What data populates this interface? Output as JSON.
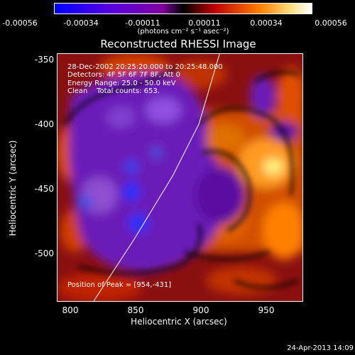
{
  "colorbar": {
    "ticks": [
      "-0.00056",
      "-0.00034",
      "-0.00011",
      "0.00011",
      "0.00034",
      "0.00056"
    ],
    "unit_label": "(photons cm⁻² s⁻¹ asec⁻²)"
  },
  "chart_data": {
    "type": "heatmap",
    "title": "Reconstructed RHESSI Image",
    "xlabel": "Heliocentric X (arcsec)",
    "ylabel": "Heliocentric Y (arcsec)",
    "xlim": [
      786,
      975
    ],
    "ylim": [
      -538,
      -345
    ],
    "x_ticks": [
      "800",
      "850",
      "900",
      "950"
    ],
    "y_ticks": [
      "-350",
      "-400",
      "-450",
      "-500"
    ],
    "limb_curve": [
      [
        814,
        -538
      ],
      [
        845,
        -490
      ],
      [
        875,
        -440
      ],
      [
        895,
        -400
      ],
      [
        911,
        -345
      ]
    ],
    "colormap": [
      "#0000ff",
      "#5a00c8",
      "#a000ff",
      "#000000",
      "#c80000",
      "#ff8000",
      "#ffffff"
    ],
    "info_lines": [
      "28-Dec-2002 20:25:20.000 to 20:25:48.000",
      "Detectors: 4F 5F 6F 7F 8F, Att 0",
      "Energy Range: 25.0 - 50.0 keV",
      "Clean    Total counts: 653."
    ],
    "peak_label": "Position of Peak = [954,-431]",
    "peak": [
      954,
      -431
    ]
  },
  "footer": {
    "date": "24-Apr-2013 14:09"
  }
}
